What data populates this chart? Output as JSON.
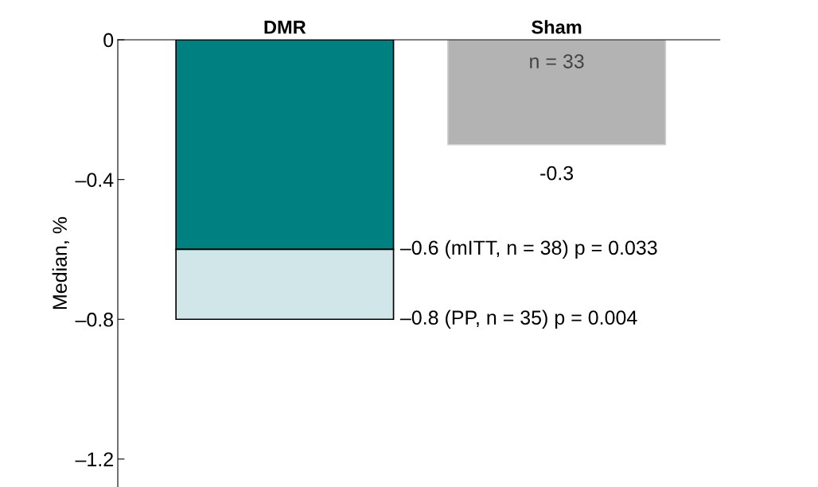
{
  "chart_data": {
    "type": "bar",
    "ylabel": "Median, %",
    "categories": [
      "DMR",
      "Sham"
    ],
    "stacked": true,
    "series": [
      {
        "colors": [
          "#008080",
          "#b3b3b3"
        ],
        "values": [
          -0.6,
          -0.3
        ],
        "value_labels": [
          null,
          "-0.3"
        ]
      },
      {
        "color": "#d0e6e8",
        "values": [
          -0.2,
          null
        ]
      }
    ],
    "ylim": [
      -1.28,
      0
    ],
    "yticks": [
      {
        "value": 0,
        "label": "0"
      },
      {
        "value": -0.4,
        "label": "–0.4"
      },
      {
        "value": -0.8,
        "label": "–0.8"
      },
      {
        "value": -1.2,
        "label": "–1.2"
      }
    ],
    "annotations": [
      "n = 33",
      "–0.6 (mITT, n = 38) p = 0.033",
      "–0.8 (PP, n = 35) p = 0.004"
    ],
    "grid": false,
    "legend": false
  }
}
